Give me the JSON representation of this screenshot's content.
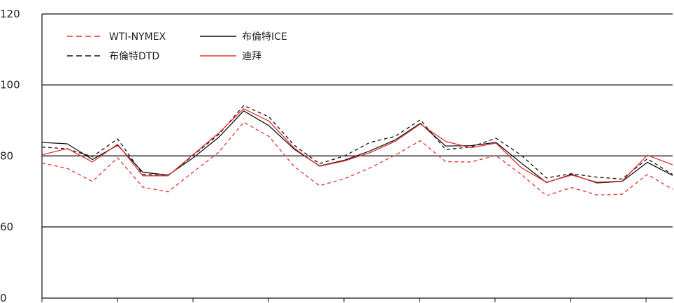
{
  "chart_data": {
    "type": "line",
    "y_ticks": [
      "120",
      "100",
      "80",
      "60",
      "0"
    ],
    "y_tick_values": [
      120,
      100,
      80,
      60,
      0
    ],
    "grid": true,
    "legend_placement": "top-left",
    "x": [
      1,
      2,
      3,
      4,
      5,
      6,
      7,
      8,
      9,
      10,
      11,
      12,
      13,
      14,
      15,
      16,
      17,
      18,
      19,
      20,
      21,
      22,
      23,
      24,
      25,
      26
    ],
    "series": [
      {
        "name": "WTI-NYMEX",
        "color": "#e8302c",
        "dash": true,
        "values": [
          78.0,
          76.5,
          72.8,
          79.5,
          71.2,
          69.9,
          75.5,
          81.0,
          89.5,
          85.5,
          77.0,
          71.6,
          73.6,
          76.6,
          80.2,
          84.3,
          78.4,
          78.3,
          80.1,
          74.8,
          68.8,
          71.1,
          69.0,
          69.2,
          74.8,
          70.6
        ]
      },
      {
        "name": "布倫特ICE",
        "color": "#111111",
        "dash": false,
        "values": [
          83.8,
          83.4,
          79.0,
          83.0,
          75.4,
          74.6,
          79.5,
          85.2,
          92.7,
          88.5,
          81.9,
          77.2,
          78.8,
          81.4,
          84.5,
          89.2,
          82.8,
          82.9,
          83.8,
          78.0,
          72.5,
          74.8,
          72.4,
          72.8,
          78.2,
          74.5
        ]
      },
      {
        "name": "布倫特DTD",
        "color": "#111111",
        "dash": true,
        "values": [
          82.5,
          82.0,
          79.8,
          84.8,
          74.8,
          74.4,
          80.2,
          86.0,
          94.2,
          91.0,
          83.0,
          77.8,
          80.0,
          83.8,
          85.5,
          90.2,
          81.8,
          82.5,
          85.0,
          80.2,
          73.8,
          75.0,
          74.0,
          73.5,
          79.2,
          74.8
        ]
      },
      {
        "name": "迪拜",
        "color": "#e8302c",
        "dash": false,
        "values": [
          80.3,
          82.1,
          78.3,
          83.3,
          74.4,
          74.4,
          80.4,
          86.4,
          93.3,
          89.8,
          82.2,
          77.1,
          78.6,
          80.9,
          84.1,
          89.0,
          84.1,
          82.3,
          83.6,
          76.7,
          72.6,
          74.6,
          72.6,
          72.9,
          80.2,
          77.5
        ]
      }
    ]
  }
}
